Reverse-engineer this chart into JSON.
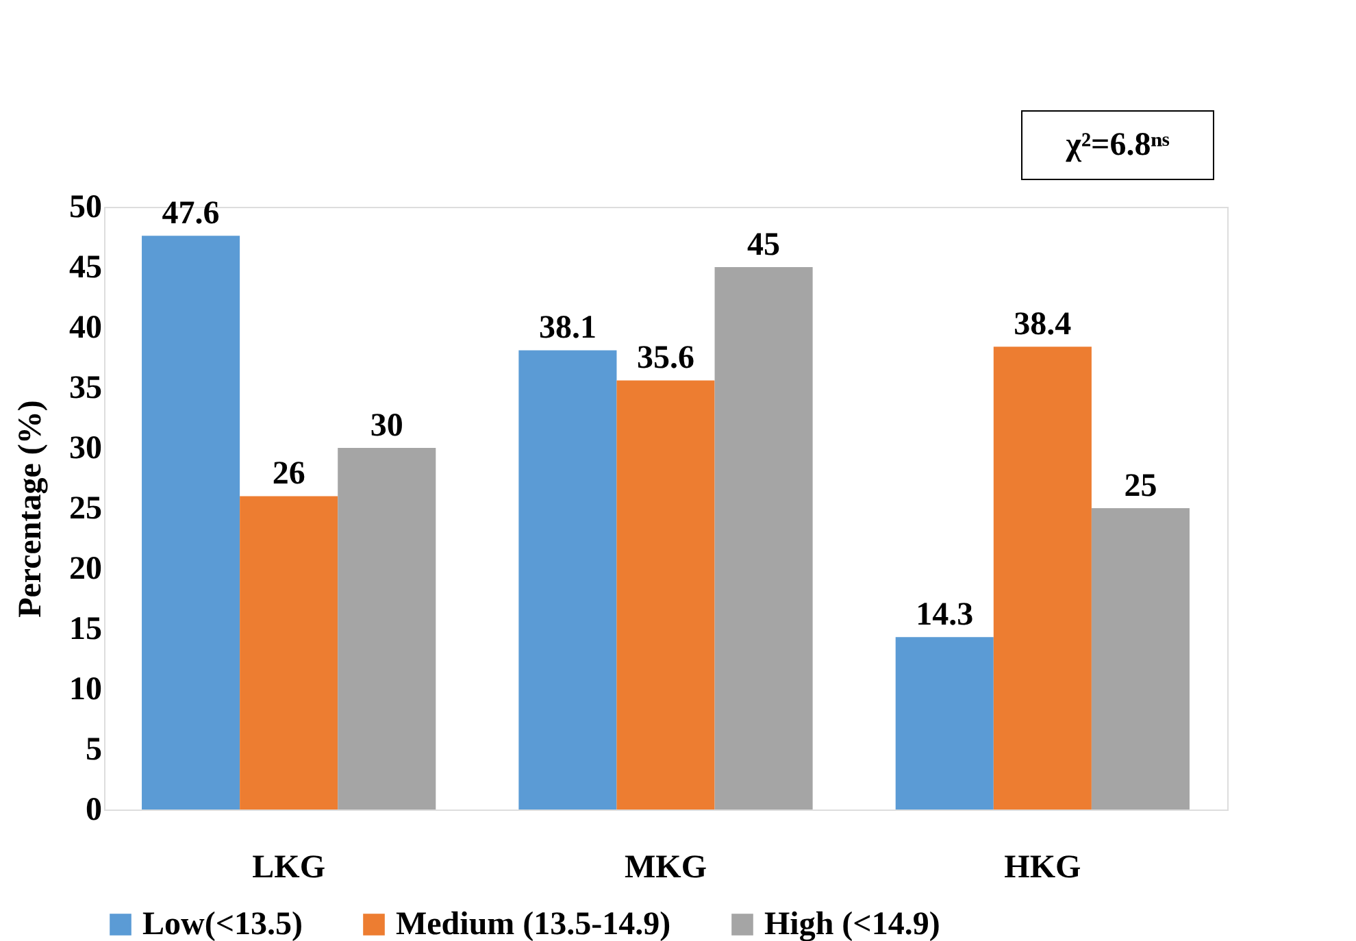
{
  "chart_data": {
    "type": "bar",
    "categories": [
      "LKG",
      "MKG",
      "HKG"
    ],
    "series": [
      {
        "name": "Low(<13.5)",
        "color": "#5b9bd5",
        "values": [
          47.6,
          38.1,
          14.3
        ]
      },
      {
        "name": "Medium (13.5-14.9)",
        "color": "#ed7d31",
        "values": [
          26,
          35.6,
          38.4
        ]
      },
      {
        "name": "High (<14.9)",
        "color": "#a5a5a5",
        "values": [
          30,
          45,
          25
        ]
      }
    ],
    "ylabel": "Percentage (%)",
    "ylim": [
      0,
      50
    ],
    "yticks": [
      0,
      5,
      10,
      15,
      20,
      25,
      30,
      35,
      40,
      45,
      50
    ],
    "data_labels": true,
    "legend": "bottom",
    "grid": false,
    "annotations": [
      "χ²=6.8ⁿˢ"
    ]
  }
}
